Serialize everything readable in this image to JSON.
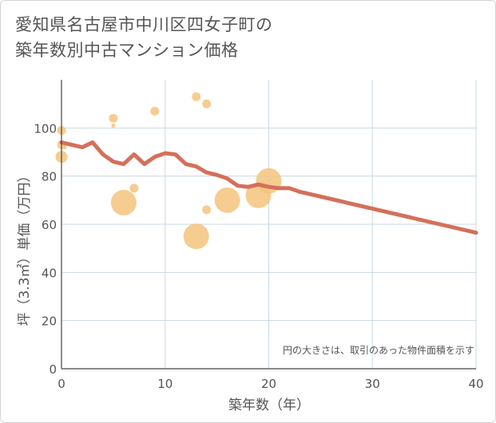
{
  "title_lines": [
    "愛知県名古屋市中川区四女子町の",
    "築年数別中古マンション価格"
  ],
  "colors": {
    "bubble": "#f3c47c",
    "line": "#d4705a",
    "grid": "#c9d8e3",
    "axis": "#444444",
    "text": "#555555"
  },
  "chart_data": {
    "type": "scatter",
    "xlabel": "築年数（年）",
    "ylabel": "坪（3.3㎡）単価（万円）",
    "xlim": [
      0,
      40
    ],
    "ylim": [
      0,
      120
    ],
    "xticks": [
      0,
      10,
      20,
      30,
      40
    ],
    "yticks": [
      0,
      20,
      40,
      60,
      80,
      100
    ],
    "grid": true,
    "note": "円の大きさは、取引のあった物件面積を示す",
    "bubbles": [
      {
        "x": 0,
        "y": 99,
        "size": "small"
      },
      {
        "x": 0,
        "y": 93,
        "size": "small"
      },
      {
        "x": 0.3,
        "y": 92,
        "size": "tiny"
      },
      {
        "x": 0,
        "y": 88,
        "size": "medium"
      },
      {
        "x": 5,
        "y": 104,
        "size": "small"
      },
      {
        "x": 5,
        "y": 101,
        "size": "tiny"
      },
      {
        "x": 6,
        "y": 69,
        "size": "large"
      },
      {
        "x": 7,
        "y": 75,
        "size": "small"
      },
      {
        "x": 9,
        "y": 107,
        "size": "small"
      },
      {
        "x": 13,
        "y": 113,
        "size": "small"
      },
      {
        "x": 13,
        "y": 55,
        "size": "large"
      },
      {
        "x": 14,
        "y": 110,
        "size": "small"
      },
      {
        "x": 14,
        "y": 66,
        "size": "small"
      },
      {
        "x": 16,
        "y": 70,
        "size": "large"
      },
      {
        "x": 19,
        "y": 72,
        "size": "large"
      },
      {
        "x": 20,
        "y": 78,
        "size": "large"
      }
    ],
    "series": [
      {
        "x": [
          0,
          1,
          2,
          3,
          4,
          5,
          6,
          7,
          8,
          9,
          10,
          11,
          12,
          13,
          14,
          15,
          16,
          17,
          18,
          19,
          20,
          21,
          22,
          23,
          24,
          25,
          26,
          27,
          28,
          29,
          30,
          31,
          32,
          33,
          34,
          35,
          36,
          37,
          38,
          39,
          40
        ],
        "values": [
          94,
          93,
          92,
          94,
          89,
          86,
          85,
          89,
          85,
          88,
          89.5,
          89,
          85,
          84,
          81.5,
          80.5,
          79,
          76,
          75.5,
          76.5,
          75.5,
          75,
          75,
          73.5,
          72.5,
          71.5,
          70.5,
          69.5,
          68.5,
          67.5,
          66.5,
          65.5,
          64.5,
          63.5,
          62.5,
          61.5,
          60.5,
          59.5,
          58.5,
          57.5,
          56.5
        ]
      }
    ]
  }
}
